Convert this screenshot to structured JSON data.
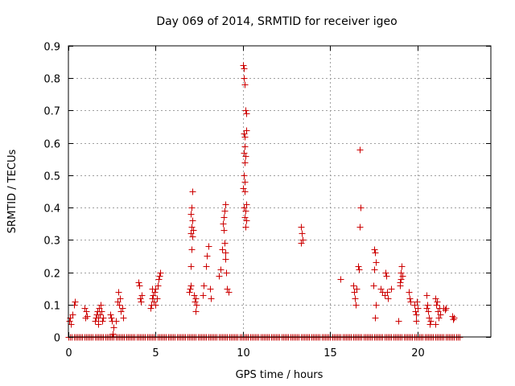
{
  "chart_data": {
    "type": "scatter",
    "title": "Day 069 of 2014, SRMTID for receiver igeo",
    "xlabel": "GPS time / hours",
    "ylabel": "SRMTID / TECUs",
    "xlim": [
      0,
      24.2
    ],
    "ylim": [
      0,
      0.9
    ],
    "xticks": [
      0,
      5,
      10,
      15,
      20
    ],
    "xtick_labels": [
      "0",
      "5",
      "10",
      "15",
      "20"
    ],
    "yticks": [
      0,
      0.1,
      0.2,
      0.3,
      0.4,
      0.5,
      0.6,
      0.7,
      0.8,
      0.9
    ],
    "ytick_labels": [
      "0",
      "0.1",
      "0.2",
      "0.3",
      "0.4",
      "0.5",
      "0.6",
      "0.7",
      "0.8",
      "0.9"
    ],
    "grid": true,
    "marker": "+",
    "color": "#cc0000",
    "zero_band": {
      "y": 0,
      "from": 0.0,
      "to": 22.4,
      "step": 0.1
    },
    "series": [
      {
        "name": "SRMTID",
        "points": [
          [
            0.05,
            0.05
          ],
          [
            0.1,
            0.06
          ],
          [
            0.15,
            0.04
          ],
          [
            0.3,
            0.1
          ],
          [
            0.35,
            0.11
          ],
          [
            0.25,
            0.07
          ],
          [
            0.9,
            0.09
          ],
          [
            1.0,
            0.08
          ],
          [
            1.05,
            0.065
          ],
          [
            0.95,
            0.06
          ],
          [
            1.5,
            0.05
          ],
          [
            1.55,
            0.06
          ],
          [
            1.6,
            0.07
          ],
          [
            1.65,
            0.08
          ],
          [
            1.7,
            0.06
          ],
          [
            1.75,
            0.09
          ],
          [
            1.8,
            0.07
          ],
          [
            1.85,
            0.1
          ],
          [
            1.9,
            0.08
          ],
          [
            1.95,
            0.05
          ],
          [
            2.0,
            0.06
          ],
          [
            1.7,
            0.04
          ],
          [
            2.4,
            0.07
          ],
          [
            2.45,
            0.06
          ],
          [
            2.5,
            0.05
          ],
          [
            2.6,
            0.03
          ],
          [
            2.55,
            0.01
          ],
          [
            2.7,
            0.05
          ],
          [
            2.8,
            0.11
          ],
          [
            2.85,
            0.14
          ],
          [
            2.9,
            0.1
          ],
          [
            2.95,
            0.12
          ],
          [
            3.0,
            0.08
          ],
          [
            3.1,
            0.09
          ],
          [
            3.15,
            0.06
          ],
          [
            4.0,
            0.17
          ],
          [
            4.05,
            0.16
          ],
          [
            4.1,
            0.12
          ],
          [
            4.15,
            0.11
          ],
          [
            4.2,
            0.13
          ],
          [
            4.7,
            0.09
          ],
          [
            4.75,
            0.1
          ],
          [
            4.8,
            0.12
          ],
          [
            4.85,
            0.13
          ],
          [
            4.9,
            0.11
          ],
          [
            4.95,
            0.14
          ],
          [
            5.0,
            0.15
          ],
          [
            5.05,
            0.12
          ],
          [
            5.1,
            0.16
          ],
          [
            5.15,
            0.18
          ],
          [
            5.2,
            0.19
          ],
          [
            5.25,
            0.2
          ],
          [
            4.8,
            0.15
          ],
          [
            5.0,
            0.1
          ],
          [
            6.9,
            0.14
          ],
          [
            6.95,
            0.15
          ],
          [
            7.0,
            0.16
          ],
          [
            7.0,
            0.22
          ],
          [
            7.05,
            0.27
          ],
          [
            7.0,
            0.32
          ],
          [
            7.05,
            0.34
          ],
          [
            7.1,
            0.36
          ],
          [
            7.0,
            0.38
          ],
          [
            7.05,
            0.4
          ],
          [
            7.1,
            0.45
          ],
          [
            7.1,
            0.31
          ],
          [
            7.15,
            0.33
          ],
          [
            7.2,
            0.13
          ],
          [
            7.25,
            0.11
          ],
          [
            7.3,
            0.08
          ],
          [
            7.35,
            0.1
          ],
          [
            7.3,
            0.12
          ],
          [
            7.7,
            0.13
          ],
          [
            7.75,
            0.16
          ],
          [
            7.9,
            0.22
          ],
          [
            7.95,
            0.25
          ],
          [
            8.0,
            0.28
          ],
          [
            8.1,
            0.15
          ],
          [
            8.15,
            0.12
          ],
          [
            8.6,
            0.19
          ],
          [
            8.7,
            0.21
          ],
          [
            8.8,
            0.27
          ],
          [
            8.85,
            0.35
          ],
          [
            8.9,
            0.37
          ],
          [
            8.95,
            0.39
          ],
          [
            9.0,
            0.41
          ],
          [
            8.9,
            0.33
          ],
          [
            8.95,
            0.29
          ],
          [
            9.0,
            0.26
          ],
          [
            9.05,
            0.2
          ],
          [
            9.1,
            0.15
          ],
          [
            9.15,
            0.14
          ],
          [
            9.0,
            0.24
          ],
          [
            10.0,
            0.84
          ],
          [
            10.05,
            0.83
          ],
          [
            10.1,
            0.78
          ],
          [
            10.05,
            0.8
          ],
          [
            10.15,
            0.7
          ],
          [
            10.2,
            0.69
          ],
          [
            10.05,
            0.63
          ],
          [
            10.1,
            0.62
          ],
          [
            10.2,
            0.64
          ],
          [
            10.1,
            0.59
          ],
          [
            10.05,
            0.57
          ],
          [
            10.15,
            0.56
          ],
          [
            10.1,
            0.54
          ],
          [
            10.05,
            0.5
          ],
          [
            10.1,
            0.48
          ],
          [
            10.0,
            0.46
          ],
          [
            10.1,
            0.45
          ],
          [
            10.2,
            0.41
          ],
          [
            10.05,
            0.4
          ],
          [
            10.15,
            0.39
          ],
          [
            10.1,
            0.37
          ],
          [
            10.2,
            0.36
          ],
          [
            10.15,
            0.34
          ],
          [
            13.3,
            0.34
          ],
          [
            13.35,
            0.32
          ],
          [
            13.4,
            0.3
          ],
          [
            13.3,
            0.29
          ],
          [
            15.6,
            0.18
          ],
          [
            16.3,
            0.16
          ],
          [
            16.35,
            0.14
          ],
          [
            16.4,
            0.12
          ],
          [
            16.45,
            0.1
          ],
          [
            16.5,
            0.15
          ],
          [
            16.6,
            0.22
          ],
          [
            16.65,
            0.21
          ],
          [
            16.7,
            0.34
          ],
          [
            16.75,
            0.4
          ],
          [
            16.7,
            0.58
          ],
          [
            17.5,
            0.27
          ],
          [
            17.55,
            0.26
          ],
          [
            17.6,
            0.23
          ],
          [
            17.5,
            0.21
          ],
          [
            17.45,
            0.16
          ],
          [
            17.6,
            0.1
          ],
          [
            17.55,
            0.06
          ],
          [
            17.9,
            0.15
          ],
          [
            18.0,
            0.14
          ],
          [
            18.1,
            0.13
          ],
          [
            18.15,
            0.2
          ],
          [
            18.2,
            0.19
          ],
          [
            18.25,
            0.14
          ],
          [
            18.3,
            0.12
          ],
          [
            18.5,
            0.15
          ],
          [
            18.9,
            0.05
          ],
          [
            19.0,
            0.17
          ],
          [
            19.05,
            0.2
          ],
          [
            19.1,
            0.22
          ],
          [
            19.15,
            0.19
          ],
          [
            19.0,
            0.16
          ],
          [
            19.05,
            0.18
          ],
          [
            19.5,
            0.14
          ],
          [
            19.55,
            0.12
          ],
          [
            19.6,
            0.11
          ],
          [
            19.8,
            0.1
          ],
          [
            19.85,
            0.08
          ],
          [
            19.9,
            0.07
          ],
          [
            19.95,
            0.11
          ],
          [
            20.0,
            0.09
          ],
          [
            19.9,
            0.05
          ],
          [
            20.5,
            0.13
          ],
          [
            20.55,
            0.1
          ],
          [
            20.6,
            0.08
          ],
          [
            20.65,
            0.06
          ],
          [
            20.7,
            0.04
          ],
          [
            20.75,
            0.05
          ],
          [
            20.5,
            0.09
          ],
          [
            21.0,
            0.12
          ],
          [
            21.05,
            0.1
          ],
          [
            21.1,
            0.11
          ],
          [
            21.15,
            0.08
          ],
          [
            21.2,
            0.06
          ],
          [
            21.25,
            0.09
          ],
          [
            21.3,
            0.07
          ],
          [
            21.0,
            0.04
          ],
          [
            21.5,
            0.09
          ],
          [
            21.55,
            0.085
          ],
          [
            21.6,
            0.09
          ],
          [
            22.0,
            0.065
          ],
          [
            22.05,
            0.055
          ],
          [
            22.1,
            0.06
          ]
        ]
      }
    ]
  }
}
